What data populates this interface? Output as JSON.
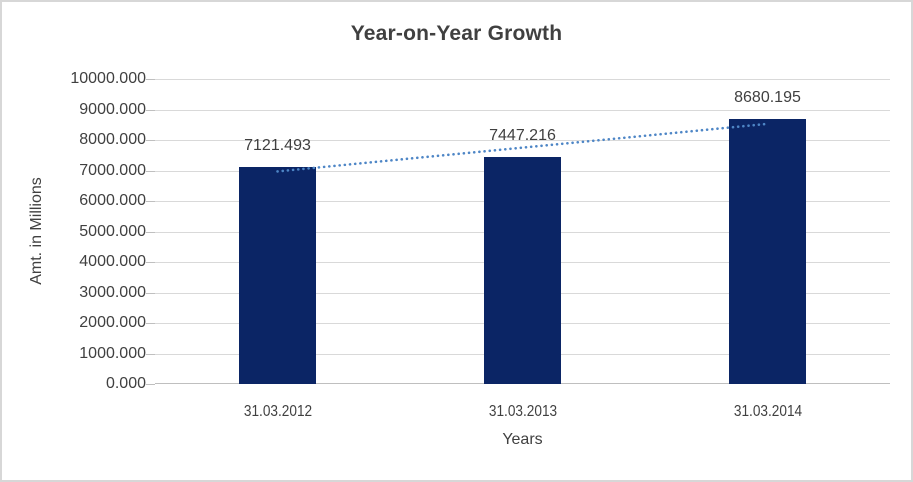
{
  "chart_data": {
    "type": "bar",
    "title": "Year-on-Year Growth",
    "categories": [
      "31.03.2012",
      "31.03.2013",
      "31.03.2014"
    ],
    "series": [
      {
        "name": "Amt. in Millions",
        "values": [
          7121.493,
          7447.216,
          8680.195
        ],
        "data_labels": [
          "7121.493",
          "7447.216",
          "8680.195"
        ]
      }
    ],
    "trendline": {
      "type": "linear",
      "style": "dotted"
    },
    "xlabel": "Years",
    "ylabel": "Amt. in Millions",
    "ylim": [
      0,
      10000
    ],
    "ytick_step": 1000,
    "ytick_labels": [
      "0.000",
      "1000.000",
      "2000.000",
      "3000.000",
      "4000.000",
      "5000.000",
      "6000.000",
      "7000.000",
      "8000.000",
      "9000.000",
      "10000.000"
    ],
    "grid": true,
    "legend": "none",
    "colors": {
      "bar": "#0b2565",
      "trendline": "#4e86c6",
      "text": "#404040",
      "gridline": "#d9d9d9",
      "axis_line": "#bfbfbf"
    }
  }
}
